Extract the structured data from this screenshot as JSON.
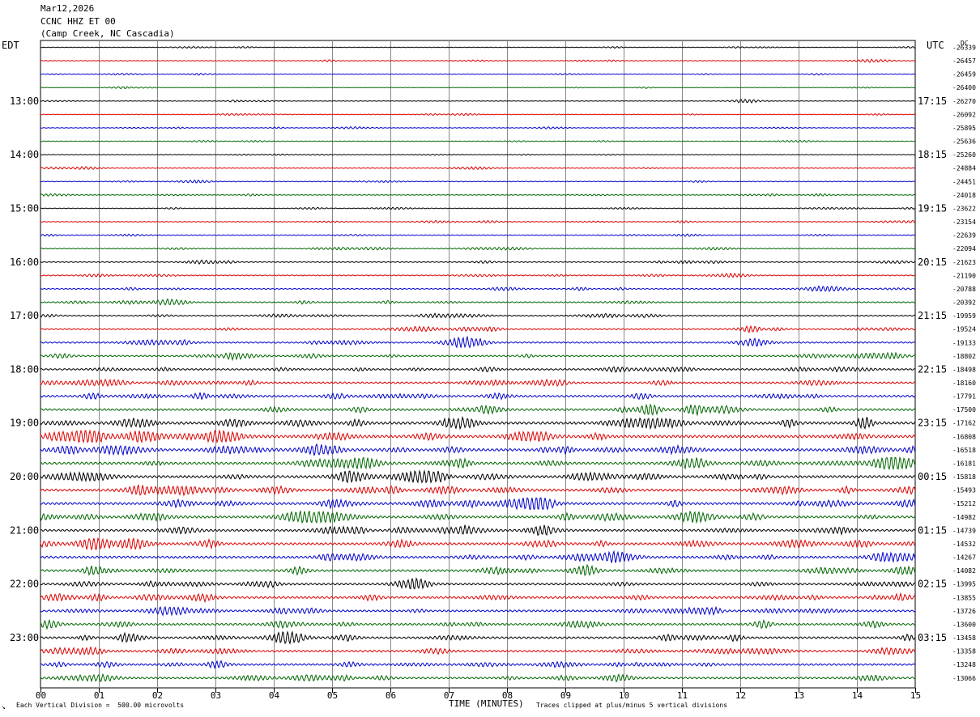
{
  "header": {
    "date": "Mar12,2026",
    "station": "CCNC HHZ ET 00",
    "location": "(Camp Creek, NC Cascadia)"
  },
  "left_tz": "EDT",
  "right_tz": "UTC",
  "dc_label": "DC",
  "footer": {
    "scale_note": "Each Vertical Division =  500.00 microvolts",
    "xlabel": "TIME (MINUTES)",
    "clip_note": "Traces clipped at plus/minus 5 vertical divisions",
    "corner_mark": "↘"
  },
  "chart_data": {
    "type": "line",
    "title": "CCNC HHZ ET 00",
    "xlabel": "TIME (MINUTES)",
    "xlim": [
      0,
      15
    ],
    "x_ticks": [
      "00",
      "01",
      "02",
      "03",
      "04",
      "05",
      "06",
      "07",
      "08",
      "09",
      "10",
      "11",
      "12",
      "13",
      "14",
      "15"
    ],
    "trace_colors": [
      "#000000",
      "#dd0000",
      "#0000cc",
      "#006600"
    ],
    "hour_labels_left": [
      "13:00",
      "14:00",
      "15:00",
      "16:00",
      "17:00",
      "18:00",
      "19:00",
      "20:00",
      "21:00",
      "22:00",
      "23:00"
    ],
    "hour_labels_right": [
      "17:15",
      "18:15",
      "19:15",
      "20:15",
      "21:15",
      "22:15",
      "23:15",
      "00:15",
      "01:15",
      "02:15",
      "03:15"
    ],
    "dc_offsets": [
      -26339,
      -26457,
      -26459,
      -26400,
      -26270,
      -26092,
      -25895,
      -25636,
      -25260,
      -24884,
      -24451,
      -24018,
      -23622,
      -23154,
      -22639,
      -22094,
      -21623,
      -21190,
      -20788,
      -20392,
      -19959,
      -19524,
      -19133,
      -18802,
      -18498,
      -18160,
      -17791,
      -17500,
      -17162,
      -16808,
      -16518,
      -16181,
      -15818,
      -15493,
      -15212,
      -14982,
      -14739,
      -14532,
      -14267,
      -14082,
      -13995,
      -13855,
      -13726,
      -13600,
      -13458,
      -13358,
      -13248,
      -13066
    ],
    "trace_activity": [
      0.35,
      0.4,
      0.4,
      0.35,
      0.35,
      0.4,
      0.4,
      0.4,
      0.4,
      0.45,
      0.45,
      0.45,
      0.45,
      0.5,
      0.5,
      0.55,
      0.6,
      0.65,
      0.7,
      0.75,
      0.8,
      0.9,
      1.0,
      1.0,
      1.1,
      1.2,
      1.3,
      1.4,
      1.7,
      1.8,
      1.7,
      1.6,
      1.6,
      1.6,
      1.5,
      1.5,
      1.4,
      1.5,
      1.5,
      1.4,
      1.3,
      1.4,
      1.3,
      1.3,
      1.3,
      1.3,
      1.2,
      1.2
    ]
  }
}
